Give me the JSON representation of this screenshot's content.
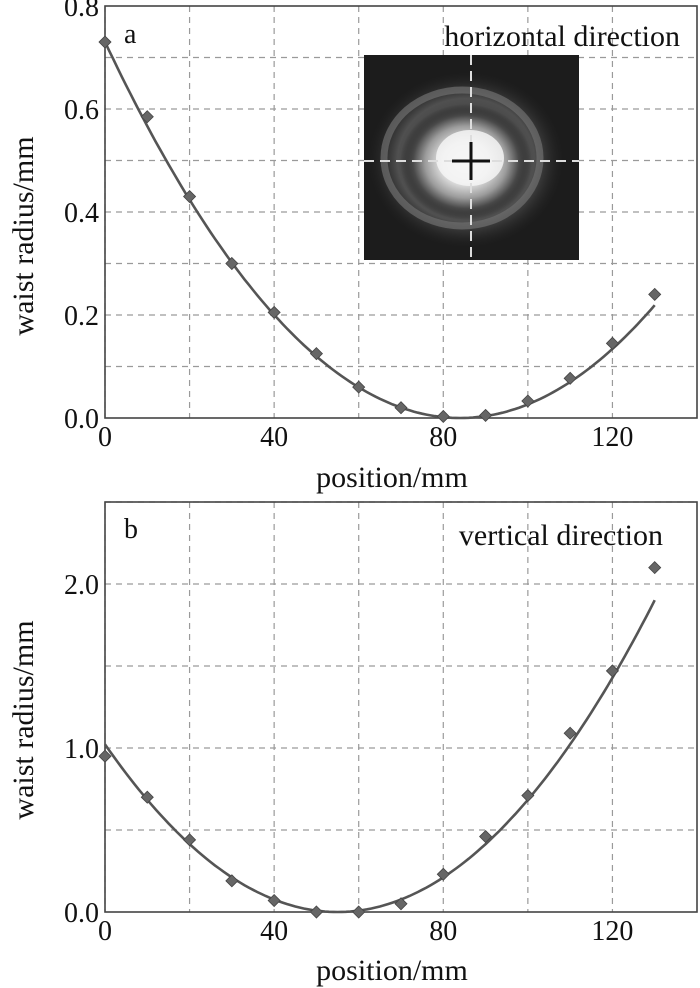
{
  "chart_data": [
    {
      "type": "scatter",
      "panel": "a",
      "annotation": "horizontal direction",
      "xlabel": "position/mm",
      "ylabel": "waist radius/mm",
      "xlim": [
        0,
        140
      ],
      "ylim": [
        0,
        0.8
      ],
      "xticks": [
        0,
        40,
        80,
        120
      ],
      "yticks": [
        0.0,
        0.2,
        0.4,
        0.6,
        0.8
      ],
      "xtick_labels": [
        "0",
        "40",
        "80",
        "120"
      ],
      "ytick_labels": [
        "0.0",
        "0.2",
        "0.4",
        "0.6",
        "0.8"
      ],
      "x_grid": [
        0,
        20,
        40,
        60,
        80,
        100,
        120
      ],
      "y_grid": [
        0.1,
        0.2,
        0.3,
        0.4,
        0.5,
        0.6,
        0.7
      ],
      "grid": true,
      "inset": "beam spot image with crosshair",
      "series": [
        {
          "x": [
            0,
            10,
            20,
            30,
            40,
            50,
            60,
            70,
            80,
            90,
            100,
            110,
            120,
            130
          ],
          "y": [
            0.73,
            0.585,
            0.43,
            0.3,
            0.205,
            0.125,
            0.06,
            0.02,
            0.003,
            0.005,
            0.033,
            0.077,
            0.145,
            0.24
          ]
        }
      ],
      "fit": {
        "vertex_x": 84,
        "a": 0.0001035
      }
    },
    {
      "type": "scatter",
      "panel": "b",
      "annotation": "vertical direction",
      "xlabel": "position/mm",
      "ylabel": "waist radius/mm",
      "xlim": [
        0,
        140
      ],
      "ylim": [
        0,
        2.5
      ],
      "xticks": [
        0,
        40,
        80,
        120
      ],
      "yticks": [
        0.0,
        1.0,
        2.0
      ],
      "xtick_labels": [
        "0",
        "40",
        "80",
        "120"
      ],
      "ytick_labels": [
        "0.0",
        "1.0",
        "2.0"
      ],
      "x_grid": [
        0,
        20,
        40,
        60,
        80,
        100,
        120
      ],
      "y_grid": [
        0.5,
        1.0,
        1.5,
        2.0,
        2.5
      ],
      "grid": true,
      "series": [
        {
          "x": [
            0,
            10,
            20,
            30,
            40,
            50,
            60,
            70,
            80,
            90,
            100,
            110,
            120,
            130
          ],
          "y": [
            0.95,
            0.7,
            0.44,
            0.19,
            0.07,
            0.0,
            0.0,
            0.05,
            0.23,
            0.46,
            0.71,
            1.09,
            1.47,
            2.1
          ]
        }
      ],
      "fit": {
        "vertex_x": 55,
        "a": 0.000338
      }
    }
  ]
}
